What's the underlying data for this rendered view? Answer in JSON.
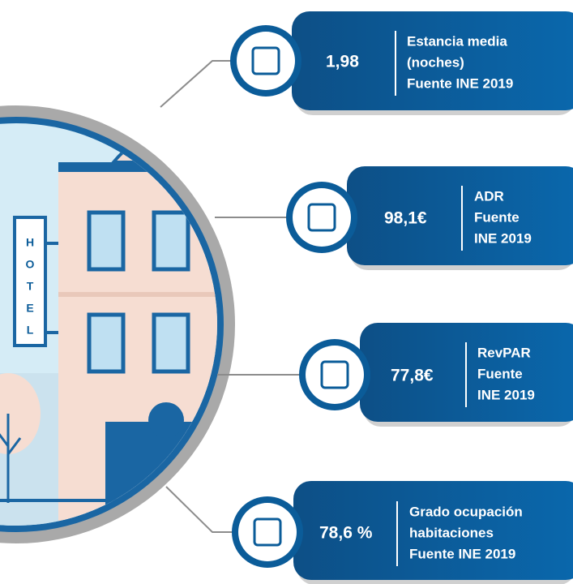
{
  "cards": [
    {
      "value": "1,98",
      "label": [
        "Estancia media",
        "(noches)",
        "Fuente INE 2019"
      ]
    },
    {
      "value": "98,1€",
      "label": [
        "ADR",
        "Fuente",
        "INE 2019"
      ]
    },
    {
      "value": "77,8€",
      "label": [
        "RevPAR",
        "Fuente",
        "INE 2019"
      ]
    },
    {
      "value": "78,6 %",
      "label": [
        "Grado ocupación",
        "habitaciones",
        "Fuente INE 2019"
      ]
    }
  ],
  "sign": [
    "H",
    "O",
    "T",
    "E",
    "L"
  ]
}
